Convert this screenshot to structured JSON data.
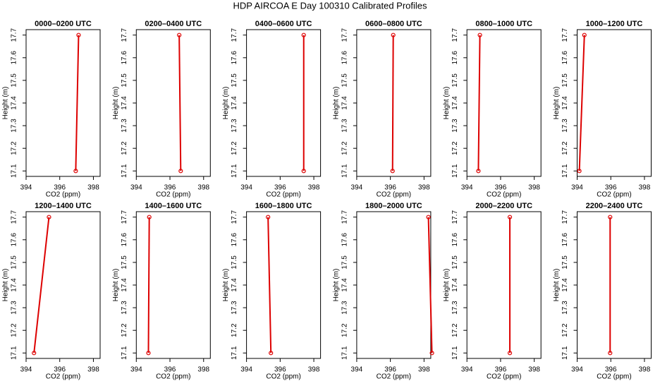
{
  "title": "HDP AIRCOA E  Day 100310  Calibrated Profiles",
  "chart_data": [
    {
      "type": "line",
      "title": "0000–0200 UTC",
      "x_label": "CO2 (ppm)",
      "y_label": "Height (m)",
      "x": [
        396.95,
        397.12
      ],
      "values": [
        17.1,
        17.7
      ],
      "color": "#dd0000",
      "xlim": [
        394,
        398.4
      ],
      "ylim": [
        17.076,
        17.724
      ],
      "xticks": [
        394,
        396,
        398
      ],
      "yticks": [
        17.1,
        17.2,
        17.3,
        17.4,
        17.5,
        17.6,
        17.7
      ]
    },
    {
      "type": "line",
      "title": "0200–0400 UTC",
      "x_label": "CO2 (ppm)",
      "y_label": "Height (m)",
      "x": [
        396.64,
        396.55
      ],
      "values": [
        17.1,
        17.7
      ],
      "color": "#dd0000",
      "xlim": [
        394,
        398.4
      ],
      "ylim": [
        17.076,
        17.724
      ],
      "xticks": [
        394,
        396,
        398
      ],
      "yticks": [
        17.1,
        17.2,
        17.3,
        17.4,
        17.5,
        17.6,
        17.7
      ]
    },
    {
      "type": "line",
      "title": "0400–0600 UTC",
      "x_label": "CO2 (ppm)",
      "y_label": "Height (m)",
      "x": [
        397.4,
        397.4
      ],
      "values": [
        17.1,
        17.7
      ],
      "color": "#dd0000",
      "xlim": [
        394,
        398.4
      ],
      "ylim": [
        17.076,
        17.724
      ],
      "xticks": [
        394,
        396,
        398
      ],
      "yticks": [
        17.1,
        17.2,
        17.3,
        17.4,
        17.5,
        17.6,
        17.7
      ]
    },
    {
      "type": "line",
      "title": "0600–0800 UTC",
      "x_label": "CO2 (ppm)",
      "y_label": "Height (m)",
      "x": [
        396.13,
        396.17
      ],
      "values": [
        17.1,
        17.7
      ],
      "color": "#dd0000",
      "xlim": [
        394,
        398.4
      ],
      "ylim": [
        17.076,
        17.724
      ],
      "xticks": [
        394,
        396,
        398
      ],
      "yticks": [
        17.1,
        17.2,
        17.3,
        17.4,
        17.5,
        17.6,
        17.7
      ]
    },
    {
      "type": "line",
      "title": "0800–1000 UTC",
      "x_label": "CO2 (ppm)",
      "y_label": "Height (m)",
      "x": [
        394.68,
        394.77
      ],
      "values": [
        17.1,
        17.7
      ],
      "color": "#dd0000",
      "xlim": [
        394,
        398.4
      ],
      "ylim": [
        17.076,
        17.724
      ],
      "xticks": [
        394,
        396,
        398
      ],
      "yticks": [
        17.1,
        17.2,
        17.3,
        17.4,
        17.5,
        17.6,
        17.7
      ]
    },
    {
      "type": "line",
      "title": "1000–1200 UTC",
      "x_label": "CO2 (ppm)",
      "y_label": "Height (m)",
      "x": [
        394.13,
        394.43
      ],
      "values": [
        17.1,
        17.7
      ],
      "color": "#dd0000",
      "xlim": [
        394,
        398.4
      ],
      "ylim": [
        17.076,
        17.724
      ],
      "xticks": [
        394,
        396,
        398
      ],
      "yticks": [
        17.1,
        17.2,
        17.3,
        17.4,
        17.5,
        17.6,
        17.7
      ]
    },
    {
      "type": "line",
      "title": "1200–1400 UTC",
      "x_label": "CO2 (ppm)",
      "y_label": "Height (m)",
      "x": [
        394.47,
        395.36
      ],
      "values": [
        17.1,
        17.7
      ],
      "color": "#dd0000",
      "xlim": [
        394,
        398.4
      ],
      "ylim": [
        17.076,
        17.724
      ],
      "xticks": [
        394,
        396,
        398
      ],
      "yticks": [
        17.1,
        17.2,
        17.3,
        17.4,
        17.5,
        17.6,
        17.7
      ]
    },
    {
      "type": "line",
      "title": "1400–1600 UTC",
      "x_label": "CO2 (ppm)",
      "y_label": "Height (m)",
      "x": [
        394.72,
        394.77
      ],
      "values": [
        17.1,
        17.7
      ],
      "color": "#dd0000",
      "xlim": [
        394,
        398.4
      ],
      "ylim": [
        17.076,
        17.724
      ],
      "xticks": [
        394,
        396,
        398
      ],
      "yticks": [
        17.1,
        17.2,
        17.3,
        17.4,
        17.5,
        17.6,
        17.7
      ]
    },
    {
      "type": "line",
      "title": "1600–1800 UTC",
      "x_label": "CO2 (ppm)",
      "y_label": "Height (m)",
      "x": [
        395.45,
        395.28
      ],
      "values": [
        17.1,
        17.7
      ],
      "color": "#dd0000",
      "xlim": [
        394,
        398.4
      ],
      "ylim": [
        17.076,
        17.724
      ],
      "xticks": [
        394,
        396,
        398
      ],
      "yticks": [
        17.1,
        17.2,
        17.3,
        17.4,
        17.5,
        17.6,
        17.7
      ]
    },
    {
      "type": "line",
      "title": "1800–2000 UTC",
      "x_label": "CO2 (ppm)",
      "y_label": "Height (m)",
      "x": [
        398.47,
        398.26
      ],
      "values": [
        17.1,
        17.7
      ],
      "color": "#dd0000",
      "xlim": [
        394,
        398.4
      ],
      "ylim": [
        17.076,
        17.724
      ],
      "xticks": [
        394,
        396,
        398
      ],
      "yticks": [
        17.1,
        17.2,
        17.3,
        17.4,
        17.5,
        17.6,
        17.7
      ]
    },
    {
      "type": "line",
      "title": "2000–2200 UTC",
      "x_label": "CO2 (ppm)",
      "y_label": "Height (m)",
      "x": [
        396.55,
        396.55
      ],
      "values": [
        17.1,
        17.7
      ],
      "color": "#dd0000",
      "xlim": [
        394,
        398.4
      ],
      "ylim": [
        17.076,
        17.724
      ],
      "xticks": [
        394,
        396,
        398
      ],
      "yticks": [
        17.1,
        17.2,
        17.3,
        17.4,
        17.5,
        17.6,
        17.7
      ]
    },
    {
      "type": "line",
      "title": "2200–2400 UTC",
      "x_label": "CO2 (ppm)",
      "y_label": "Height (m)",
      "x": [
        395.96,
        395.96
      ],
      "values": [
        17.1,
        17.7
      ],
      "color": "#dd0000",
      "xlim": [
        394,
        398.4
      ],
      "ylim": [
        17.076,
        17.724
      ],
      "xticks": [
        394,
        396,
        398
      ],
      "yticks": [
        17.1,
        17.2,
        17.3,
        17.4,
        17.5,
        17.6,
        17.7
      ]
    }
  ]
}
